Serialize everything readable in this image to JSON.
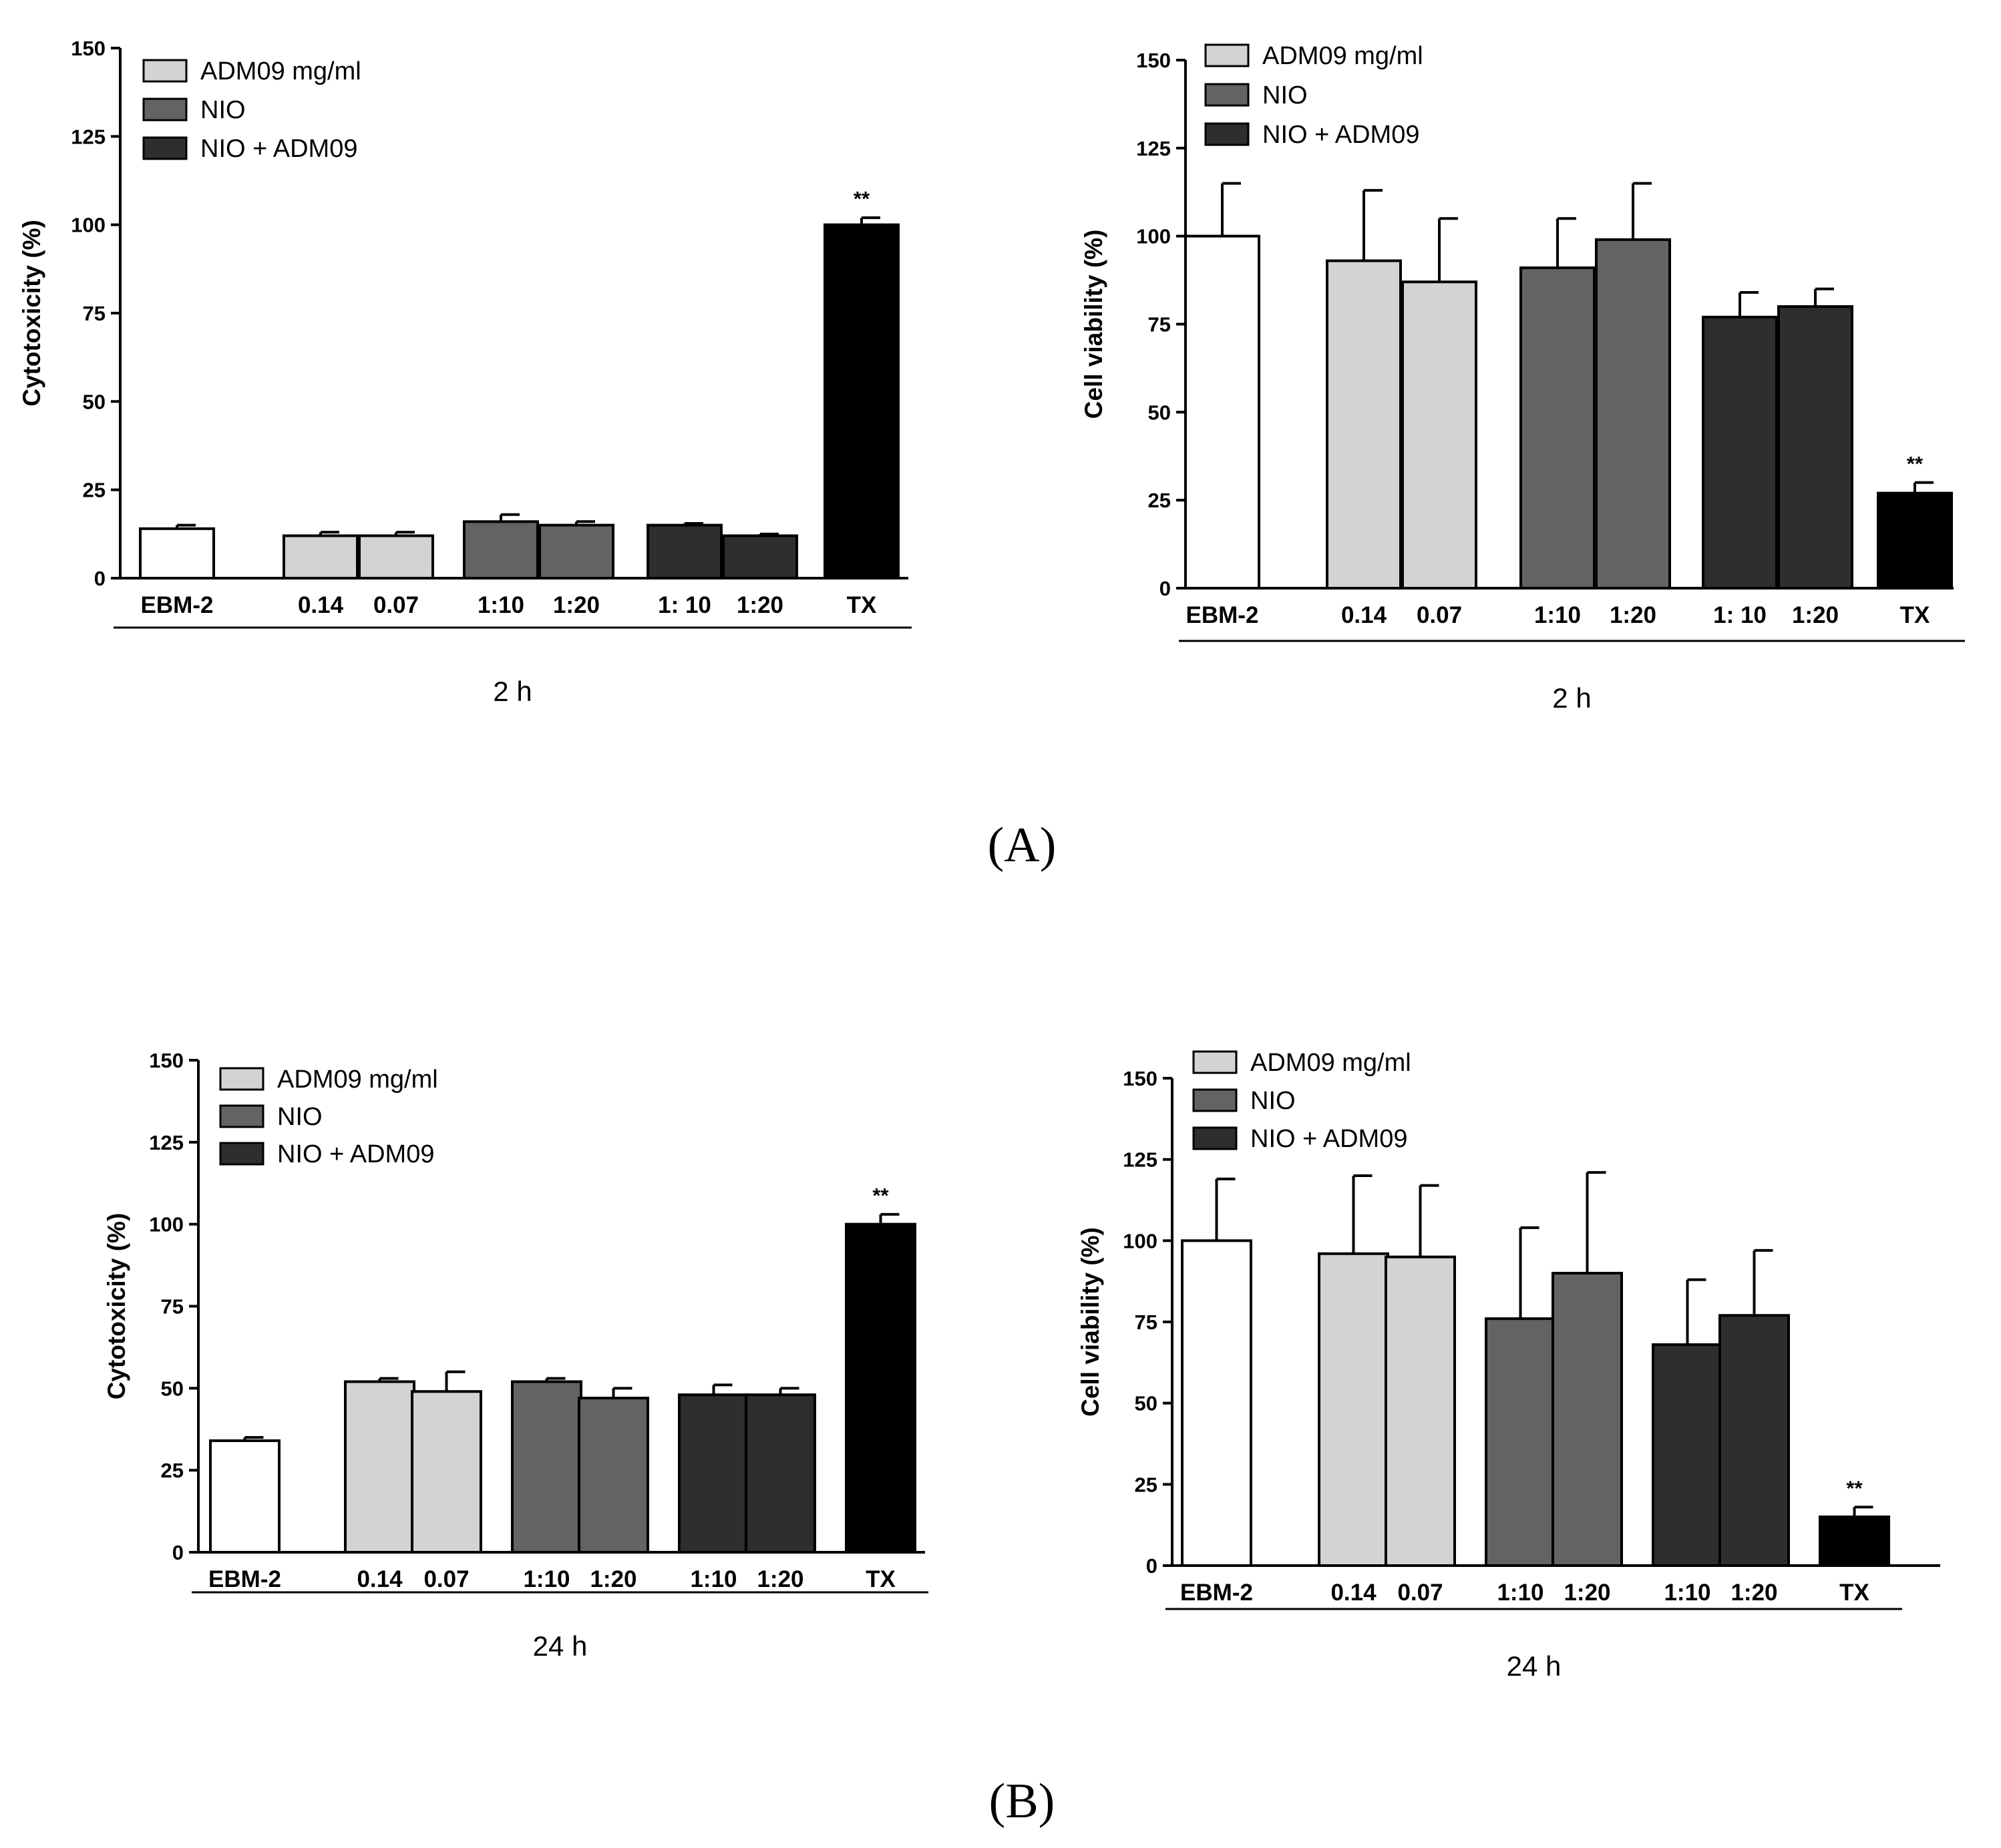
{
  "panel_labels": {
    "a": "(A)",
    "b": "(B)"
  },
  "chart_data": [
    {
      "type": "bar",
      "ylabel": "Cytotoxicity (%)",
      "xlabel": "2 h",
      "ylim": [
        0,
        150
      ],
      "yticks": [
        0,
        25,
        50,
        75,
        100,
        125,
        150
      ],
      "legend": [
        {
          "label": "ADM09 mg/ml",
          "color": "#d3d3d3"
        },
        {
          "label": "NIO",
          "color": "#636363"
        },
        {
          "label": "NIO + ADM09",
          "color": "#2e2e2e"
        }
      ],
      "categories": [
        "EBM-2",
        "0.14",
        "0.07",
        "1:10",
        "1:20",
        "1: 10",
        "1:20",
        "TX"
      ],
      "values": [
        14,
        12,
        12,
        16,
        15,
        15,
        12,
        100
      ],
      "errors": [
        1,
        1,
        1,
        2,
        1,
        0.5,
        0.5,
        2
      ],
      "colors": [
        "#ffffff",
        "#d3d3d3",
        "#d3d3d3",
        "#636363",
        "#636363",
        "#2e2e2e",
        "#2e2e2e",
        "#000000"
      ],
      "annotations": [
        {
          "category_index": 7,
          "text": "**"
        }
      ]
    },
    {
      "type": "bar",
      "ylabel": "Cell viability (%)",
      "xlabel": "2 h",
      "ylim": [
        0,
        150
      ],
      "yticks": [
        0,
        25,
        50,
        75,
        100,
        125,
        150
      ],
      "legend": [
        {
          "label": "ADM09 mg/ml",
          "color": "#d3d3d3"
        },
        {
          "label": "NIO",
          "color": "#636363"
        },
        {
          "label": "NIO + ADM09",
          "color": "#2e2e2e"
        }
      ],
      "categories": [
        "EBM-2",
        "0.14",
        "0.07",
        "1:10",
        "1:20",
        "1: 10",
        "1:20",
        "TX"
      ],
      "values": [
        100,
        93,
        87,
        91,
        99,
        77,
        80,
        27
      ],
      "errors": [
        15,
        20,
        18,
        14,
        16,
        7,
        5,
        3
      ],
      "colors": [
        "#ffffff",
        "#d3d3d3",
        "#d3d3d3",
        "#636363",
        "#636363",
        "#2e2e2e",
        "#2e2e2e",
        "#000000"
      ],
      "annotations": [
        {
          "category_index": 7,
          "text": "**"
        }
      ]
    },
    {
      "type": "bar",
      "ylabel": "Cytotoxicity (%)",
      "xlabel": "24 h",
      "ylim": [
        0,
        150
      ],
      "yticks": [
        0,
        25,
        50,
        75,
        100,
        125,
        150
      ],
      "legend": [
        {
          "label": "ADM09 mg/ml",
          "color": "#d3d3d3"
        },
        {
          "label": "NIO",
          "color": "#636363"
        },
        {
          "label": "NIO + ADM09",
          "color": "#2e2e2e"
        }
      ],
      "categories": [
        "EBM-2",
        "0.14",
        "0.07",
        "1:10",
        "1:20",
        "1:10",
        "1:20",
        "TX"
      ],
      "values": [
        34,
        52,
        49,
        52,
        47,
        48,
        48,
        100
      ],
      "errors": [
        1,
        1,
        6,
        1,
        3,
        3,
        2,
        3
      ],
      "colors": [
        "#ffffff",
        "#d3d3d3",
        "#d3d3d3",
        "#636363",
        "#636363",
        "#2e2e2e",
        "#2e2e2e",
        "#000000"
      ],
      "annotations": [
        {
          "category_index": 7,
          "text": "**"
        }
      ]
    },
    {
      "type": "bar",
      "ylabel": "Cell viability (%)",
      "xlabel": "24 h",
      "ylim": [
        0,
        150
      ],
      "yticks": [
        0,
        25,
        50,
        75,
        100,
        125,
        150
      ],
      "legend": [
        {
          "label": "ADM09 mg/ml",
          "color": "#d3d3d3"
        },
        {
          "label": "NIO",
          "color": "#636363"
        },
        {
          "label": "NIO + ADM09",
          "color": "#2e2e2e"
        }
      ],
      "categories": [
        "EBM-2",
        "0.14",
        "0.07",
        "1:10",
        "1:20",
        "1:10",
        "1:20",
        "TX"
      ],
      "values": [
        100,
        96,
        95,
        76,
        90,
        68,
        77,
        15
      ],
      "errors": [
        19,
        24,
        22,
        28,
        31,
        20,
        20,
        3
      ],
      "colors": [
        "#ffffff",
        "#d3d3d3",
        "#d3d3d3",
        "#636363",
        "#636363",
        "#2e2e2e",
        "#2e2e2e",
        "#000000"
      ],
      "annotations": [
        {
          "category_index": 7,
          "text": "**"
        }
      ]
    }
  ]
}
